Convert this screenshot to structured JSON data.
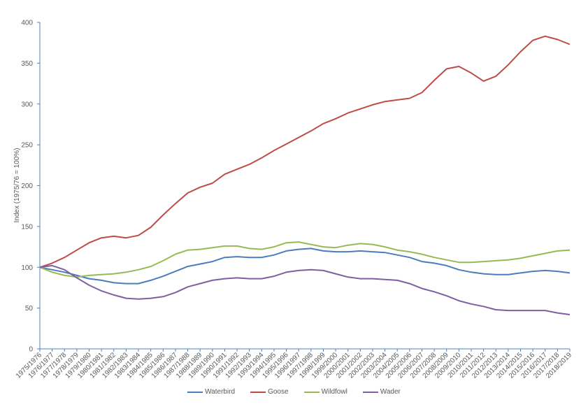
{
  "chart_data": {
    "type": "line",
    "title": "",
    "xlabel": "",
    "ylabel": "Index (1975/76 = 100%)",
    "ylim": [
      0,
      400
    ],
    "yticks": [
      0,
      50,
      100,
      150,
      200,
      250,
      300,
      350,
      400
    ],
    "grid": false,
    "legend_position": "bottom",
    "categories": [
      "1975/1976",
      "1976/1977",
      "1977/1978",
      "1978/1979",
      "1979/1980",
      "1980/1981",
      "1981/1982",
      "1982/1983",
      "1983/1984",
      "1984/1985",
      "1985/1986",
      "1986/1987",
      "1987/1988",
      "1988/1989",
      "1989/1990",
      "1990/1991",
      "1991/1992",
      "1992/1993",
      "1993/1994",
      "1994/1995",
      "1995/1996",
      "1996/1997",
      "1997/1998",
      "1998/1999",
      "1999/2000",
      "2000/2001",
      "2001/2002",
      "2002/2003",
      "2003/2004",
      "2004/2005",
      "2005/2006",
      "2006/2007",
      "2007/2008",
      "2008/2009",
      "2009/2010",
      "2010/2011",
      "2011/2012",
      "2012/2013",
      "2013/2014",
      "2014/2015",
      "2015/2016",
      "2016/2017",
      "2017/2018",
      "2018/2019"
    ],
    "series": [
      {
        "name": "Waterbird",
        "color": "#4a7ebb",
        "values": [
          100,
          97,
          94,
          90,
          86,
          84,
          81,
          80,
          80,
          84,
          89,
          95,
          101,
          104,
          107,
          112,
          113,
          112,
          112,
          115,
          120,
          122,
          123,
          120,
          119,
          119,
          120,
          119,
          118,
          115,
          112,
          107,
          105,
          102,
          97,
          94,
          92,
          91,
          91,
          93,
          95,
          96,
          95,
          93
        ]
      },
      {
        "name": "Goose",
        "color": "#be4b48",
        "values": [
          100,
          105,
          112,
          121,
          130,
          136,
          138,
          136,
          139,
          149,
          164,
          178,
          191,
          198,
          203,
          214,
          220,
          226,
          234,
          243,
          251,
          259,
          267,
          276,
          282,
          289,
          294,
          299,
          303,
          305,
          307,
          314,
          329,
          343,
          346,
          338,
          328,
          334,
          348,
          364,
          378,
          383,
          379,
          373
        ]
      },
      {
        "name": "Wildfowl",
        "color": "#98b954",
        "values": [
          100,
          94,
          90,
          88,
          90,
          91,
          92,
          94,
          97,
          101,
          108,
          116,
          121,
          122,
          124,
          126,
          126,
          123,
          122,
          125,
          130,
          131,
          128,
          125,
          124,
          127,
          129,
          128,
          125,
          121,
          119,
          116,
          112,
          109,
          106,
          106,
          107,
          108,
          109,
          111,
          114,
          117,
          120,
          121
        ]
      },
      {
        "name": "Wader",
        "color": "#7d60a0",
        "values": [
          100,
          102,
          97,
          87,
          78,
          71,
          66,
          62,
          61,
          62,
          64,
          69,
          76,
          80,
          84,
          86,
          87,
          86,
          86,
          89,
          94,
          96,
          97,
          96,
          92,
          88,
          86,
          86,
          85,
          84,
          80,
          74,
          70,
          65,
          59,
          55,
          52,
          48,
          47,
          47,
          47,
          47,
          44,
          42
        ]
      }
    ]
  }
}
